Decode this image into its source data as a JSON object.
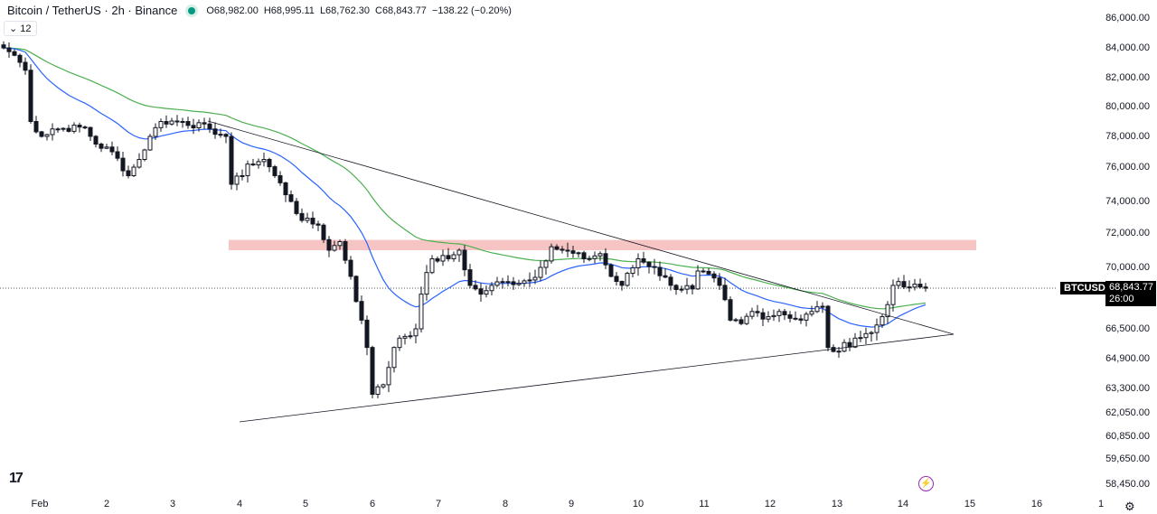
{
  "header": {
    "symbol_title": "Bitcoin / TetherUS · 2h · Binance",
    "open": "O68,982.00",
    "high": "H68,995.11",
    "low": "L68,762.30",
    "close": "C68,843.77",
    "change": "−138.22 (−0.20%)",
    "indicators_toggle": "12"
  },
  "price_axis": {
    "labels": [
      "86,000.00",
      "84,000.00",
      "82,000.00",
      "80,000.00",
      "78,000.00",
      "76,000.00",
      "74,000.00",
      "72,000.00",
      "70,000.00",
      "66,500.00",
      "64,900.00",
      "63,300.00",
      "62,050.00",
      "60,850.00",
      "59,650.00",
      "58,450.00"
    ]
  },
  "time_axis": {
    "labels": [
      "Feb",
      "2",
      "3",
      "4",
      "5",
      "6",
      "7",
      "8",
      "9",
      "10",
      "11",
      "12",
      "13",
      "14",
      "15",
      "16",
      "1"
    ]
  },
  "last_price": {
    "symbol": "BTCUSDT",
    "price": "68,843.77",
    "countdown": "26:00"
  },
  "icons": {
    "logo": "TV",
    "bolt": "⚡",
    "settings": "⚙"
  },
  "colors": {
    "up": "#131722",
    "down": "#131722",
    "ma_fast": "#2962ff",
    "ma_slow": "#4caf50",
    "zone": "#f5b5b5"
  },
  "chart_data": {
    "type": "candlestick",
    "interval": "2h",
    "close_waypoints": [
      [
        0,
        84000
      ],
      [
        2,
        83500
      ],
      [
        4,
        82500
      ],
      [
        5,
        79000
      ],
      [
        7,
        78000
      ],
      [
        9,
        78500
      ],
      [
        15,
        78600
      ],
      [
        17,
        77500
      ],
      [
        20,
        77000
      ],
      [
        23,
        75500
      ],
      [
        25,
        76500
      ],
      [
        27,
        78000
      ],
      [
        29,
        79000
      ],
      [
        33,
        79000
      ],
      [
        38,
        78500
      ],
      [
        41,
        78000
      ],
      [
        42,
        75000
      ],
      [
        44,
        75500
      ],
      [
        45,
        76200
      ],
      [
        48,
        76500
      ],
      [
        50,
        75500
      ],
      [
        53,
        74000
      ],
      [
        55,
        72800
      ],
      [
        58,
        72500
      ],
      [
        60,
        71000
      ],
      [
        62,
        71500
      ],
      [
        64,
        69500
      ],
      [
        66,
        67000
      ],
      [
        67,
        65500
      ],
      [
        68,
        63000
      ],
      [
        70,
        63500
      ],
      [
        72,
        65500
      ],
      [
        73,
        66000
      ],
      [
        76,
        66500
      ],
      [
        77,
        68500
      ],
      [
        79,
        70500
      ],
      [
        82,
        70500
      ],
      [
        84,
        71000
      ],
      [
        86,
        69000
      ],
      [
        88,
        68500
      ],
      [
        90,
        69000
      ],
      [
        93,
        69200
      ],
      [
        97,
        69300
      ],
      [
        99,
        70000
      ],
      [
        101,
        71200
      ],
      [
        103,
        71000
      ],
      [
        107,
        70500
      ],
      [
        110,
        70800
      ],
      [
        112,
        69500
      ],
      [
        114,
        69000
      ],
      [
        117,
        70500
      ],
      [
        120,
        70000
      ],
      [
        123,
        69000
      ],
      [
        127,
        68800
      ],
      [
        128,
        69800
      ],
      [
        132,
        69000
      ],
      [
        134,
        67000
      ],
      [
        136,
        66800
      ],
      [
        138,
        67500
      ],
      [
        141,
        67200
      ],
      [
        143,
        67500
      ],
      [
        147,
        67000
      ],
      [
        149,
        67500
      ],
      [
        151,
        67800
      ],
      [
        152,
        65500
      ],
      [
        154,
        65300
      ],
      [
        157,
        66000
      ],
      [
        160,
        66300
      ],
      [
        162,
        67200
      ],
      [
        164,
        69000
      ],
      [
        167,
        68900
      ],
      [
        170,
        68843.77
      ]
    ],
    "zone": [
      71000,
      71600
    ],
    "ma_periods": [
      20,
      50
    ]
  }
}
